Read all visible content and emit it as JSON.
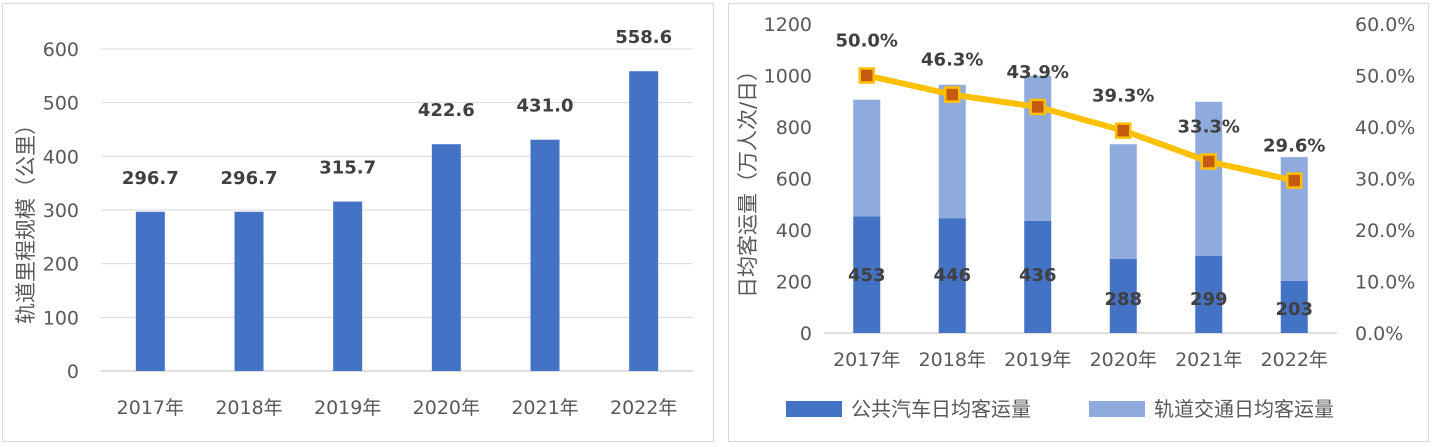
{
  "chart_data": [
    {
      "type": "bar",
      "categories": [
        "2017年",
        "2018年",
        "2019年",
        "2020年",
        "2021年",
        "2022年"
      ],
      "values": [
        296.7,
        296.7,
        315.7,
        422.6,
        431.0,
        558.6
      ],
      "value_labels": [
        "296.7",
        "296.7",
        "315.7",
        "422.6",
        "431.0",
        "558.6"
      ],
      "ylabel": "轨道里程规模（公里）",
      "ylim": [
        0,
        600
      ],
      "yticks": [
        "0",
        "100",
        "200",
        "300",
        "400",
        "500",
        "600"
      ],
      "grid": true,
      "color": "#4472C4"
    },
    {
      "type": "bar",
      "stacked": true,
      "categories": [
        "2017年",
        "2018年",
        "2019年",
        "2020年",
        "2021年",
        "2022年"
      ],
      "series": [
        {
          "name": "公共汽车日均客运量",
          "values": [
            453,
            446,
            436,
            288,
            299,
            203
          ],
          "value_labels": [
            "453",
            "446",
            "436",
            "288",
            "299",
            "203"
          ],
          "color": "#4472C4"
        },
        {
          "name": "轨道交通日均客运量",
          "values": [
            453,
            518,
            563,
            445,
            599,
            480
          ],
          "color": "#8FAADC"
        }
      ],
      "line_series": {
        "type": "line",
        "axis": "right",
        "values": [
          50.0,
          46.3,
          43.9,
          39.3,
          33.3,
          29.6
        ],
        "value_labels": [
          "50.0%",
          "46.3%",
          "43.9%",
          "39.3%",
          "33.3%",
          "29.6%"
        ],
        "line_color": "#FFC000",
        "marker_color": "#C55A11"
      },
      "ylabel": "日均客运量（万人次/日）",
      "ylim": [
        0,
        1200
      ],
      "yticks": [
        "0",
        "200",
        "400",
        "600",
        "800",
        "1000",
        "1200"
      ],
      "y2lim": [
        0,
        60
      ],
      "y2ticks": [
        "0.0%",
        "10.0%",
        "20.0%",
        "30.0%",
        "40.0%",
        "50.0%",
        "60.0%"
      ],
      "grid": false,
      "legend_position": "bottom"
    }
  ]
}
